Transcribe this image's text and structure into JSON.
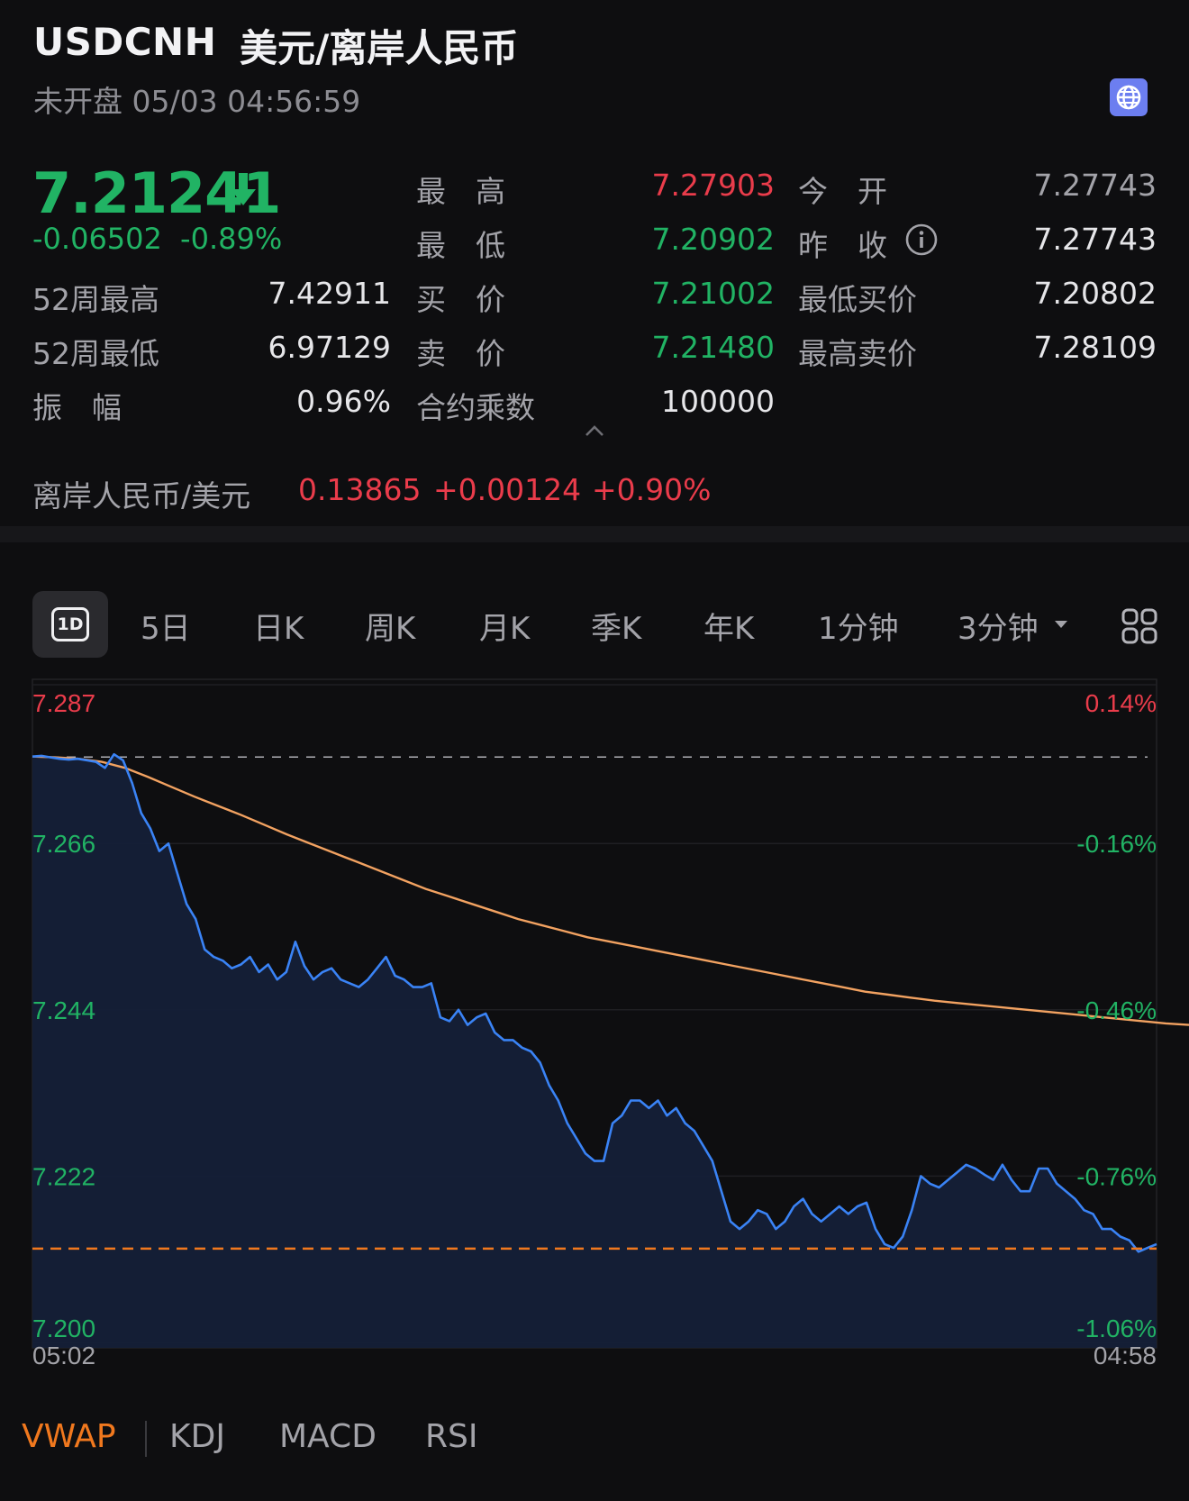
{
  "header": {
    "code": "USDCNH",
    "name": "美元/离岸人民币",
    "status": "未开盘 05/03 04:56:59",
    "globe_icon": "globe-icon"
  },
  "quote": {
    "price": "7.21241",
    "change": "-0.06502",
    "change_pct": "-0.89%",
    "stats": {
      "high_label": "最　高",
      "high": "7.27903",
      "open_label": "今　开",
      "open": "7.27743",
      "low_label": "最　低",
      "low": "7.20902",
      "prev_close_label": "昨　收",
      "prev_close": "7.27743",
      "wk52_high_label": "52周最高",
      "wk52_high": "7.42911",
      "bid_label": "买　价",
      "bid": "7.21002",
      "lowest_bid_label": "最低买价",
      "lowest_bid": "7.20802",
      "wk52_low_label": "52周最低",
      "wk52_low": "6.97129",
      "ask_label": "卖　价",
      "ask": "7.21480",
      "highest_ask_label": "最高卖价",
      "highest_ask": "7.28109",
      "amplitude_label": "振　幅",
      "amplitude": "0.96%",
      "multiplier_label": "合约乘数",
      "multiplier": "100000"
    }
  },
  "reverse_pair": {
    "label": "离岸人民币/美元",
    "price": "0.13865",
    "change": "+0.00124",
    "change_pct": "+0.90%"
  },
  "tabs": {
    "items": [
      "5日",
      "日K",
      "周K",
      "月K",
      "季K",
      "年K",
      "1分钟",
      "3分钟"
    ],
    "active": "1D"
  },
  "chart_data": {
    "type": "line",
    "y_ticks": [
      "7.287",
      "7.266",
      "7.244",
      "7.222",
      "7.200"
    ],
    "pct_ticks": [
      "0.14%",
      "-0.16%",
      "-0.46%",
      "-0.76%",
      "-1.06%"
    ],
    "ylim": [
      7.2,
      7.287
    ],
    "x_start": "05:02",
    "x_end": "04:58",
    "prev_close": 7.27743,
    "current": 7.21241,
    "series": [
      {
        "values": [
          7.2775,
          7.2776,
          7.2774,
          7.2772,
          7.2771,
          7.2772,
          7.277,
          7.2768,
          7.276,
          7.2778,
          7.277,
          7.274,
          7.27,
          7.268,
          7.265,
          7.266,
          7.262,
          7.258,
          7.256,
          7.252,
          7.251,
          7.2505,
          7.2495,
          7.25,
          7.251,
          7.249,
          7.25,
          7.248,
          7.249,
          7.253,
          7.2498,
          7.248,
          7.249,
          7.2495,
          7.248,
          7.2475,
          7.247,
          7.248,
          7.2495,
          7.251,
          7.2485,
          7.248,
          7.247,
          7.247,
          7.2475,
          7.243,
          7.2425,
          7.244,
          7.242,
          7.243,
          7.2435,
          7.241,
          7.24,
          7.24,
          7.239,
          7.2385,
          7.237,
          7.234,
          7.232,
          7.229,
          7.227,
          7.225,
          7.224,
          7.224,
          7.229,
          7.23,
          7.232,
          7.232,
          7.231,
          7.232,
          7.23,
          7.231,
          7.229,
          7.228,
          7.226,
          7.224,
          7.22,
          7.216,
          7.215,
          7.216,
          7.2175,
          7.217,
          7.215,
          7.216,
          7.218,
          7.219,
          7.217,
          7.216,
          7.217,
          7.218,
          7.217,
          7.218,
          7.2185,
          7.215,
          7.213,
          7.2125,
          7.214,
          7.2175,
          7.222,
          7.221,
          7.2205,
          7.2215,
          7.2225,
          7.2235,
          7.223,
          7.2222,
          7.2215,
          7.2235,
          7.2215,
          7.22,
          7.22,
          7.223,
          7.223,
          7.221,
          7.22,
          7.219,
          7.2175,
          7.217,
          7.215,
          7.215,
          7.214,
          7.2135,
          7.212,
          7.2125,
          7.213
        ]
      },
      {
        "name": "VWAP",
        "values": [
          7.2775,
          7.2774,
          7.2772,
          7.2768,
          7.276,
          7.2748,
          7.2735,
          7.2722,
          7.271,
          7.2698,
          7.2685,
          7.2672,
          7.266,
          7.2648,
          7.2636,
          7.2624,
          7.2612,
          7.26,
          7.259,
          7.258,
          7.257,
          7.256,
          7.2552,
          7.2544,
          7.2536,
          7.253,
          7.2524,
          7.2518,
          7.2512,
          7.2506,
          7.25,
          7.2494,
          7.2488,
          7.2482,
          7.2476,
          7.247,
          7.2464,
          7.246,
          7.2456,
          7.2452,
          7.2449,
          7.2446,
          7.2443,
          7.244,
          7.2437,
          7.2434,
          7.2431,
          7.2428,
          7.2425,
          7.2422,
          7.242
        ]
      }
    ]
  },
  "indicators": {
    "items": [
      "VWAP",
      "KDJ",
      "MACD",
      "RSI"
    ],
    "active": "VWAP"
  },
  "colors": {
    "up": "#ea3c4b",
    "down": "#21b364",
    "price_line": "#3a83f5",
    "vwap_line": "#f2a261",
    "accent": "#f0781e"
  }
}
